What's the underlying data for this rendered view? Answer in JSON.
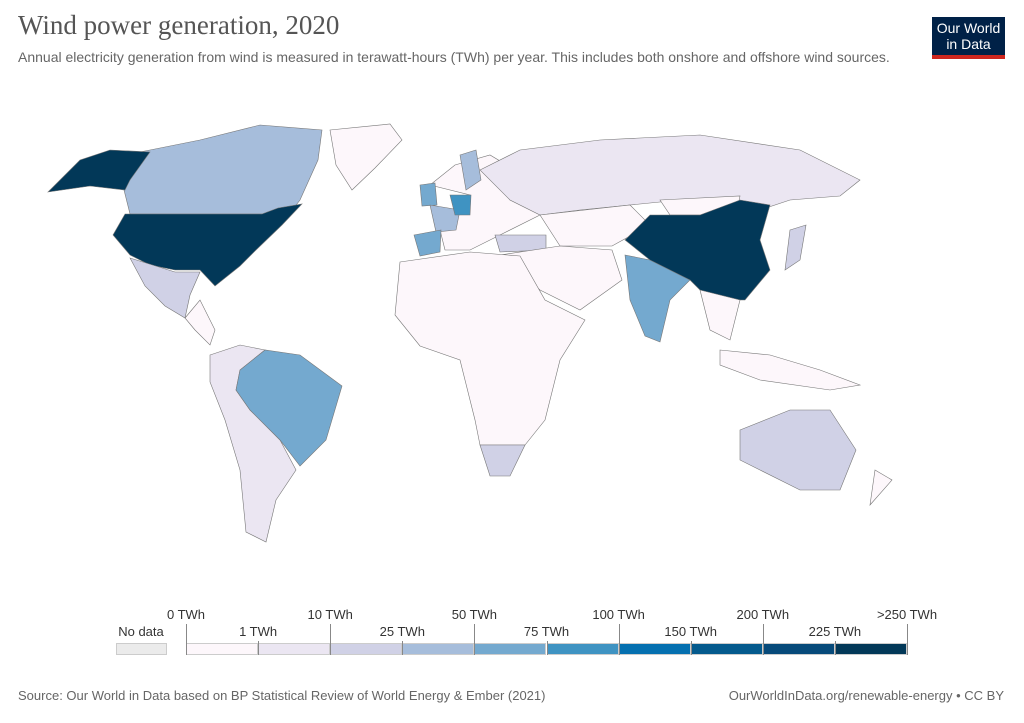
{
  "header": {
    "title": "Wind power generation, 2020",
    "subtitle": "Annual electricity generation from wind is measured in terawatt-hours (TWh) per year. This includes both onshore and offshore wind sources.",
    "logo": "Our World in Data"
  },
  "legend": {
    "no_data": "No data",
    "no_data_color": "#ebebeb",
    "top_labels": [
      "0 TWh",
      "10 TWh",
      "50 TWh",
      "100 TWh",
      "200 TWh",
      ">250 TWh"
    ],
    "bottom_labels": [
      "1 TWh",
      "25 TWh",
      "75 TWh",
      "150 TWh",
      "225 TWh"
    ],
    "colors": [
      "#fdf7fb",
      "#ebe6f2",
      "#d0d1e6",
      "#a6bddb",
      "#74a9cf",
      "#3f93c2",
      "#0570b0",
      "#045a8d",
      "#074a7a",
      "#023858"
    ]
  },
  "map": {
    "ocean": "#ffffff",
    "fills": {
      "canada": 3,
      "alaska": 9,
      "usa": 9,
      "greenland": 0,
      "mexico": 2,
      "central-america": 0,
      "brazil": 4,
      "south-america-rest": 1,
      "europe-rest": 0,
      "spain": 4,
      "france": 3,
      "germany": 5,
      "uk": 4,
      "sweden": 3,
      "russia": 1,
      "central-asia": 0,
      "middle-east": 0,
      "turkey": 2,
      "africa": 0,
      "south-africa": 2,
      "india": 4,
      "china": 9,
      "mongolia": 0,
      "southeast-asia": 0,
      "indonesia": 0,
      "japan": 2,
      "australia": 2,
      "new-zealand": 0
    }
  },
  "footer": {
    "source": "Source: Our World in Data based on BP Statistical Review of World Energy & Ember (2021)",
    "url": "OurWorldInData.org/renewable-energy • CC BY"
  }
}
